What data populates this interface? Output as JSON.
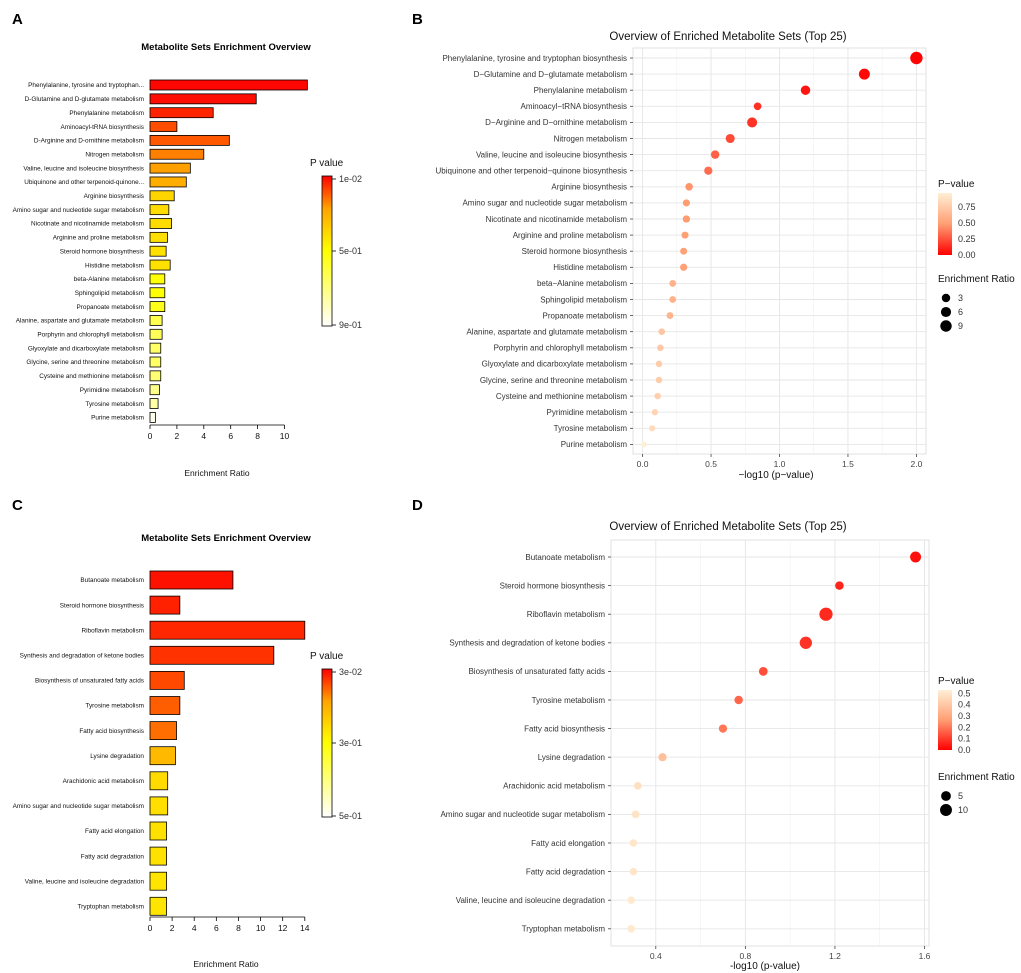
{
  "panels": {
    "A": {
      "label": "A"
    },
    "B": {
      "label": "B"
    },
    "C": {
      "label": "C"
    },
    "D": {
      "label": "D"
    }
  },
  "colors": {
    "low_p": "#ff0000",
    "mid_p": "#ffa500",
    "high_p_bar": "#ffff00",
    "white": "#ffffff",
    "panel_bg": "#ebebeb",
    "dot_high": "#ffefd5"
  },
  "chart_data": [
    {
      "panel": "A",
      "type": "bar",
      "orientation": "horizontal",
      "title": "Metabolite Sets Enrichment Overview",
      "xlabel": "Enrichment Ratio",
      "xlim": [
        0,
        11.6
      ],
      "xticks": [
        "0",
        "2",
        "4",
        "6",
        "8",
        "10"
      ],
      "xtick_values": [
        0,
        2,
        4,
        6,
        8,
        10
      ],
      "categories": [
        "Phenylalanine, tyrosine and tryptophan...",
        "D-Glutamine and D-glutamate metabolism",
        "Phenylalanine metabolism",
        "Aminoacyl-tRNA biosynthesis",
        "D-Arginine and D-ornithine metabolism",
        "Nitrogen metabolism",
        "Valine, leucine and isoleucine biosynthesis",
        "Ubiquinone and other terpenoid-quinone...",
        "Arginine biosynthesis",
        "Amino sugar and nucleotide sugar metabolism",
        "Nicotinate and nicotinamide metabolism",
        "Arginine and proline metabolism",
        "Steroid hormone biosynthesis",
        "Histidine metabolism",
        "beta-Alanine metabolism",
        "Sphingolipid metabolism",
        "Propanoate metabolism",
        "Alanine, aspartate and glutamate metabolism",
        "Porphyrin and chlorophyll metabolism",
        "Glyoxylate and dicarboxylate metabolism",
        "Glycine, serine and threonine metabolism",
        "Cysteine and methionine metabolism",
        "Pyrimidine metabolism",
        "Tyrosine metabolism",
        "Purine metabolism"
      ],
      "values": [
        11.7,
        7.9,
        4.7,
        2.0,
        5.9,
        4.0,
        3.0,
        2.7,
        1.8,
        1.4,
        1.6,
        1.3,
        1.2,
        1.5,
        1.1,
        1.1,
        1.1,
        0.9,
        0.9,
        0.8,
        0.8,
        0.8,
        0.7,
        0.6,
        0.4
      ],
      "pvalues": [
        0.01,
        0.024,
        0.065,
        0.14,
        0.16,
        0.23,
        0.29,
        0.33,
        0.46,
        0.48,
        0.48,
        0.49,
        0.5,
        0.5,
        0.61,
        0.61,
        0.64,
        0.72,
        0.74,
        0.76,
        0.76,
        0.78,
        0.82,
        0.86,
        0.97
      ],
      "legend": {
        "title": "P value",
        "labels": [
          "1e-02",
          "5e-01",
          "9e-01"
        ]
      }
    },
    {
      "panel": "B",
      "type": "scatter",
      "title": "Overview of Enriched Metabolite Sets (Top 25)",
      "xlabel": "−log10 (p−value)",
      "xlim": [
        -0.07,
        2.07
      ],
      "xticks": [
        "0.0",
        "0.5",
        "1.0",
        "1.5",
        "2.0"
      ],
      "xtick_values": [
        0,
        0.5,
        1.0,
        1.5,
        2.0
      ],
      "categories": [
        "Phenylalanine, tyrosine and tryptophan biosynthesis",
        "D−Glutamine and D−glutamate metabolism",
        "Phenylalanine metabolism",
        "Aminoacyl−tRNA biosynthesis",
        "D−Arginine and D−ornithine metabolism",
        "Nitrogen metabolism",
        "Valine, leucine and isoleucine biosynthesis",
        "Ubiquinone and other terpenoid−quinone biosynthesis",
        "Arginine biosynthesis",
        "Amino sugar and nucleotide sugar metabolism",
        "Nicotinate and nicotinamide metabolism",
        "Arginine and proline metabolism",
        "Steroid hormone biosynthesis",
        "Histidine metabolism",
        "beta−Alanine metabolism",
        "Sphingolipid metabolism",
        "Propanoate metabolism",
        "Alanine, aspartate and glutamate metabolism",
        "Porphyrin and chlorophyll metabolism",
        "Glyoxylate and dicarboxylate metabolism",
        "Glycine, serine and threonine metabolism",
        "Cysteine and methionine metabolism",
        "Pyrimidine metabolism",
        "Tyrosine metabolism",
        "Purine metabolism"
      ],
      "x": [
        2.0,
        1.62,
        1.19,
        0.84,
        0.8,
        0.64,
        0.53,
        0.48,
        0.34,
        0.32,
        0.32,
        0.31,
        0.3,
        0.3,
        0.22,
        0.22,
        0.2,
        0.14,
        0.13,
        0.12,
        0.12,
        0.11,
        0.09,
        0.07,
        0.01
      ],
      "enrichment_ratio": [
        11.7,
        7.9,
        4.7,
        2.0,
        5.9,
        4.0,
        3.0,
        2.7,
        1.8,
        1.4,
        1.6,
        1.3,
        1.2,
        1.5,
        1.1,
        1.1,
        1.1,
        0.9,
        0.9,
        0.8,
        0.8,
        0.8,
        0.7,
        0.6,
        0.4
      ],
      "legend": {
        "pvalue_title": "P−value",
        "pvalue_labels": [
          "0.75",
          "0.50",
          "0.25",
          "0.00"
        ],
        "pvalue_values": [
          0.75,
          0.5,
          0.25,
          0.0
        ],
        "pvalue_max": 0.97,
        "size_title": "Enrichment Ratio",
        "size_labels": [
          "3",
          "6",
          "9"
        ],
        "size_values": [
          3,
          6,
          9
        ]
      }
    },
    {
      "panel": "C",
      "type": "bar",
      "orientation": "horizontal",
      "title": "Metabolite Sets Enrichment Overview",
      "xlabel": "Enrichment Ratio",
      "xlim": [
        0,
        14.2
      ],
      "xticks": [
        "0",
        "2",
        "4",
        "6",
        "8",
        "10",
        "12",
        "14"
      ],
      "xtick_values": [
        0,
        2,
        4,
        6,
        8,
        10,
        12,
        14
      ],
      "categories": [
        "Butanoate metabolism",
        "Steroid hormone biosynthesis",
        "Riboflavin metabolism",
        "Synthesis and degradation of ketone bodies",
        "Biosynthesis of unsaturated fatty acids",
        "Tyrosine metabolism",
        "Fatty acid biosynthesis",
        "Lysine degradation",
        "Arachidonic acid metabolism",
        "Amino sugar and nucleotide sugar metabolism",
        "Fatty acid elongation",
        "Fatty acid degradation",
        "Valine, leucine and isoleucine degradation",
        "Tryptophan metabolism"
      ],
      "values": [
        7.5,
        2.7,
        14.0,
        11.2,
        3.1,
        2.7,
        2.4,
        2.3,
        1.6,
        1.6,
        1.5,
        1.5,
        1.5,
        1.5
      ],
      "pvalues": [
        0.03,
        0.06,
        0.07,
        0.09,
        0.13,
        0.17,
        0.2,
        0.37,
        0.48,
        0.49,
        0.5,
        0.5,
        0.51,
        0.51
      ],
      "legend": {
        "title": "P value",
        "labels": [
          "3e-02",
          "3e-01",
          "5e-01"
        ]
      }
    },
    {
      "panel": "D",
      "type": "scatter",
      "title": "Overview of Enriched Metabolite Sets (Top 25)",
      "xlabel": "-log10 (p-value)",
      "xlim": [
        0.2,
        1.62
      ],
      "xticks": [
        "0.4",
        "0.8",
        "1.2",
        "1.6"
      ],
      "xtick_values": [
        0.4,
        0.8,
        1.2,
        1.6
      ],
      "categories": [
        "Butanoate metabolism",
        "Steroid hormone biosynthesis",
        "Riboflavin metabolism",
        "Synthesis and degradation of ketone bodies",
        "Biosynthesis of unsaturated fatty acids",
        "Tyrosine metabolism",
        "Fatty acid biosynthesis",
        "Lysine degradation",
        "Arachidonic acid metabolism",
        "Amino sugar and nucleotide sugar metabolism",
        "Fatty acid elongation",
        "Fatty acid degradation",
        "Valine, leucine and isoleucine degradation",
        "Tryptophan metabolism"
      ],
      "x": [
        1.56,
        1.22,
        1.16,
        1.07,
        0.88,
        0.77,
        0.7,
        0.43,
        0.32,
        0.31,
        0.3,
        0.3,
        0.29,
        0.29
      ],
      "enrichment_ratio": [
        7.5,
        2.7,
        14.0,
        11.2,
        3.1,
        2.7,
        2.4,
        2.3,
        1.6,
        1.6,
        1.5,
        1.5,
        1.5,
        1.5
      ],
      "legend": {
        "pvalue_title": "P−value",
        "pvalue_labels": [
          "0.5",
          "0.4",
          "0.3",
          "0.2",
          "0.1",
          "0.0"
        ],
        "pvalue_values": [
          0.5,
          0.4,
          0.3,
          0.2,
          0.1,
          0.0
        ],
        "pvalue_max": 0.53,
        "size_title": "Enrichment Ratio",
        "size_labels": [
          "5",
          "10"
        ],
        "size_values": [
          5,
          10
        ]
      }
    }
  ]
}
